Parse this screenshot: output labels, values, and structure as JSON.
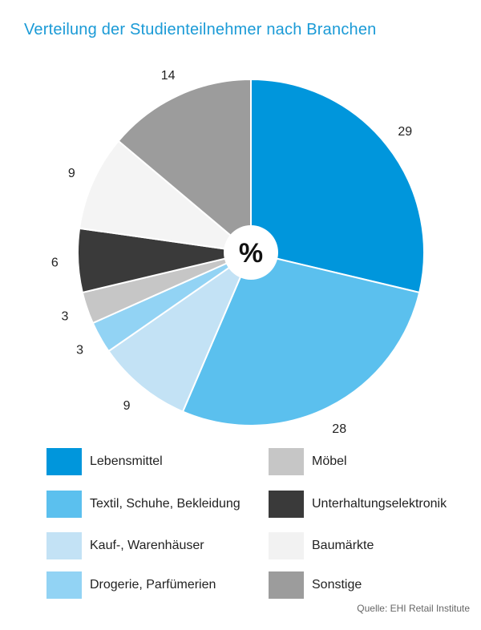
{
  "chart_data": {
    "type": "pie",
    "title": "Verteilung der Studienteilnehmer nach Branchen",
    "center_label": "%",
    "slices": [
      {
        "name": "Lebensmittel",
        "value": 29,
        "color": "#0096dc"
      },
      {
        "name": "Textil, Schuhe, Bekleidung",
        "value": 28,
        "color": "#5bc0ee"
      },
      {
        "name": "Kauf-, Warenhäuser",
        "value": 9,
        "color": "#c3e2f5"
      },
      {
        "name": "Drogerie, Parfümerien",
        "value": 3,
        "color": "#92d3f4"
      },
      {
        "name": "Möbel",
        "value": 3,
        "color": "#c6c6c6"
      },
      {
        "name": "Unterhaltungselektronik",
        "value": 6,
        "color": "#3a3a3a"
      },
      {
        "name": "Baumärkte",
        "value": 9,
        "color": "#f4f4f4"
      },
      {
        "name": "Sonstige",
        "value": 14,
        "color": "#9c9c9c"
      }
    ],
    "source": "Quelle: EHI Retail Institute"
  }
}
